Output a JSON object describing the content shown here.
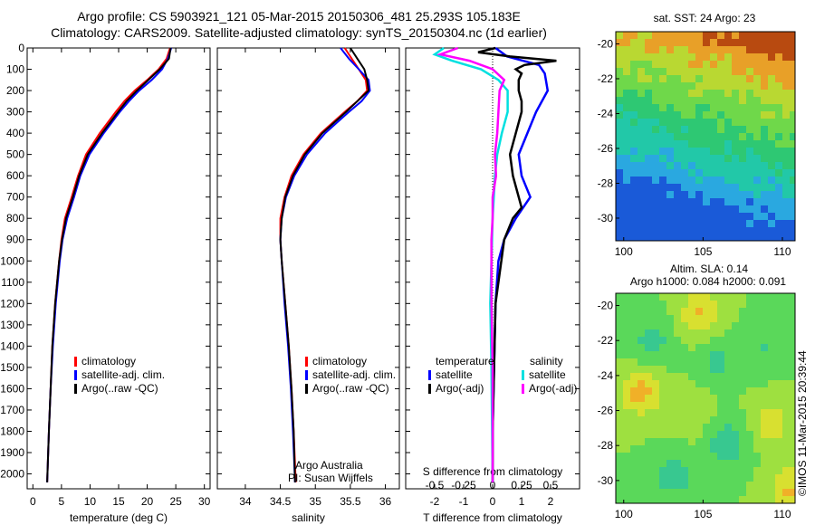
{
  "header": {
    "title_line1": "Argo profile: CS 5903921_121 05-Mar-2015 20150306_481 25.293S 105.183E",
    "title_line2": "Climatology: CARS2009. Satellite-adjusted climatology: synTS_20150304.nc (1d earlier)"
  },
  "footer": {
    "stamp": "©IMOS 11-Mar-2015 20:39:44",
    "argo_australia": "Argo Australia",
    "pi": "PI: Susan Wijffels"
  },
  "colors": {
    "climatology": "#ff0000",
    "satellite": "#0000ff",
    "argo": "#000000",
    "salinity_satellite": "#00e0e0",
    "salinity_argo": "#ff00ff"
  },
  "chart_data": [
    {
      "type": "line",
      "panel": "temperature",
      "xlabel": "temperature (deg C)",
      "xlim": [
        -1,
        31
      ],
      "xticks": [
        0,
        5,
        10,
        15,
        20,
        25,
        30
      ],
      "ylim": [
        2070,
        0
      ],
      "yticks": [
        0,
        100,
        200,
        300,
        400,
        500,
        600,
        700,
        800,
        900,
        1000,
        1100,
        1200,
        1300,
        1400,
        1500,
        1600,
        1700,
        1800,
        1900,
        2000
      ],
      "legend": [
        "climatology",
        "satellite-adj. clim.",
        "Argo(..raw -QC)"
      ],
      "series": [
        {
          "name": "climatology",
          "depth": [
            0,
            50,
            100,
            150,
            200,
            250,
            300,
            400,
            500,
            600,
            700,
            800,
            900,
            1000,
            1200,
            1400,
            1600,
            1800,
            2040
          ],
          "values": [
            24.0,
            23.4,
            22.0,
            20.0,
            17.8,
            16.0,
            14.5,
            11.7,
            9.3,
            7.9,
            6.8,
            5.6,
            5.0,
            4.6,
            3.9,
            3.4,
            3.1,
            2.8,
            2.5
          ]
        },
        {
          "name": "satellite-adj. clim.",
          "depth": [
            0,
            50,
            100,
            150,
            200,
            250,
            300,
            400,
            500,
            600,
            700,
            800,
            900,
            1000,
            1200,
            1400,
            1600,
            1800,
            2040
          ],
          "values": [
            24.2,
            23.6,
            22.6,
            20.8,
            18.6,
            16.8,
            15.2,
            12.4,
            9.9,
            8.3,
            7.2,
            6.0,
            5.2,
            4.7,
            4.0,
            3.5,
            3.1,
            2.8,
            2.5
          ]
        },
        {
          "name": "Argo(..raw -QC)",
          "depth": [
            0,
            50,
            100,
            150,
            200,
            250,
            300,
            400,
            500,
            600,
            700,
            800,
            900,
            1000,
            1200,
            1400,
            1600,
            1800,
            2040
          ],
          "values": [
            24.1,
            23.8,
            22.2,
            20.2,
            18.2,
            16.4,
            14.9,
            12.1,
            9.6,
            8.1,
            7.0,
            5.8,
            5.1,
            4.6,
            3.9,
            3.4,
            3.1,
            2.8,
            2.5
          ]
        }
      ]
    },
    {
      "type": "line",
      "panel": "salinity",
      "xlabel": "salinity",
      "xlim": [
        33.6,
        36.2
      ],
      "xticks": [
        34,
        34.5,
        35,
        35.5,
        36
      ],
      "ylim": [
        2070,
        0
      ],
      "legend": [
        "climatology",
        "satellite-adj. clim.",
        "Argo(..raw -QC)"
      ],
      "series": [
        {
          "name": "climatology",
          "depth": [
            0,
            50,
            100,
            150,
            200,
            250,
            300,
            400,
            500,
            600,
            700,
            800,
            900,
            1000,
            1200,
            1400,
            1600,
            1800,
            2040
          ],
          "values": [
            35.42,
            35.52,
            35.62,
            35.72,
            35.74,
            35.6,
            35.42,
            35.08,
            34.83,
            34.66,
            34.56,
            34.5,
            34.5,
            34.52,
            34.57,
            34.62,
            34.66,
            34.69,
            34.72
          ]
        },
        {
          "name": "satellite-adj. clim.",
          "depth": [
            0,
            50,
            100,
            150,
            200,
            250,
            300,
            400,
            500,
            600,
            700,
            800,
            900,
            1000,
            1200,
            1400,
            1600,
            1800,
            2040
          ],
          "values": [
            35.36,
            35.48,
            35.62,
            35.76,
            35.78,
            35.66,
            35.48,
            35.14,
            34.88,
            34.7,
            34.58,
            34.52,
            34.5,
            34.52,
            34.56,
            34.61,
            34.65,
            34.68,
            34.71
          ]
        },
        {
          "name": "Argo(..raw -QC)",
          "depth": [
            0,
            50,
            100,
            150,
            200,
            250,
            300,
            400,
            500,
            600,
            700,
            800,
            900,
            1000,
            1200,
            1400,
            1600,
            1800,
            2040
          ],
          "values": [
            35.5,
            35.6,
            35.7,
            35.74,
            35.76,
            35.6,
            35.44,
            35.1,
            34.85,
            34.68,
            34.57,
            34.52,
            34.5,
            34.52,
            34.57,
            34.62,
            34.66,
            34.69,
            34.71
          ]
        }
      ]
    },
    {
      "type": "line",
      "panel": "difference",
      "xlabel": "T difference from climatology",
      "xlabel_top": "S difference from climatology",
      "xlim": [
        -3,
        3
      ],
      "xticks": [
        -2,
        -1,
        0,
        1,
        2
      ],
      "xticks_top": [
        -0.5,
        -0.25,
        0,
        0.25,
        0.5
      ],
      "ylim": [
        2070,
        0
      ],
      "legend_temperature_title": "temperature",
      "legend_salinity_title": "salinity",
      "legend_temperature": [
        "satellite",
        "Argo(-adj)"
      ],
      "legend_salinity": [
        "satellite",
        "Argo(-adj)"
      ],
      "series": [
        {
          "name": "temperature satellite",
          "depth": [
            0,
            40,
            80,
            120,
            200,
            300,
            400,
            500,
            600,
            700,
            800,
            900,
            1000,
            1200,
            1500,
            1800,
            2040
          ],
          "values": [
            0.1,
            0.5,
            1.6,
            1.8,
            1.9,
            1.5,
            1.2,
            0.9,
            1.0,
            1.3,
            0.8,
            0.4,
            0.2,
            0.1,
            0.05,
            0.0,
            0.0
          ]
        },
        {
          "name": "temperature Argo(-adj)",
          "depth": [
            0,
            20,
            40,
            60,
            80,
            100,
            120,
            150,
            200,
            250,
            300,
            400,
            500,
            600,
            700,
            750,
            800,
            900,
            1000,
            1100,
            1200,
            1500,
            1800,
            2040
          ],
          "values": [
            0.1,
            -0.5,
            0.6,
            2.2,
            1.1,
            0.8,
            1.0,
            0.9,
            0.9,
            1.0,
            1.0,
            0.8,
            0.6,
            0.7,
            0.9,
            1.0,
            0.7,
            0.4,
            0.3,
            0.2,
            0.1,
            0.05,
            0.0,
            0.0
          ]
        },
        {
          "name": "salinity satellite",
          "depth": [
            0,
            30,
            60,
            100,
            150,
            200,
            300,
            400,
            500,
            600,
            800,
            1000,
            1200,
            1500,
            2040
          ],
          "values": [
            -0.42,
            -0.5,
            -0.35,
            -0.1,
            0.05,
            0.13,
            0.13,
            0.08,
            0.04,
            0.02,
            0.0,
            -0.01,
            -0.02,
            -0.01,
            0.0
          ]
        },
        {
          "name": "salinity Argo(-adj)",
          "depth": [
            0,
            30,
            60,
            100,
            150,
            200,
            300,
            400,
            500,
            600,
            700,
            800,
            900,
            1000,
            1200,
            1500,
            2040
          ],
          "values": [
            -0.3,
            -0.45,
            -0.2,
            0.0,
            0.1,
            0.06,
            0.05,
            0.04,
            0.02,
            0.03,
            0.0,
            0.0,
            -0.01,
            -0.01,
            -0.01,
            0.0,
            0.0
          ]
        }
      ]
    },
    {
      "type": "heatmap",
      "panel": "sst-map",
      "title": "sat. SST: 24  Argo: 23",
      "xticks": [
        100,
        105,
        110
      ],
      "yticks": [
        -20,
        -22,
        -24,
        -26,
        -28,
        -30
      ],
      "xlim": [
        99.5,
        110.8
      ],
      "ylim": [
        -31.3,
        -19.3
      ],
      "colors_by_latitude": [
        "#b84a10",
        "#e8a028",
        "#b9d832",
        "#6fd84a",
        "#2ec873",
        "#22c8a8",
        "#2aa8e0",
        "#1a5ad8"
      ]
    },
    {
      "type": "heatmap",
      "panel": "sla-map",
      "title": "Altim. SLA: 0.14",
      "subtitle": "Argo h1000: 0.084  h2000: 0.091",
      "xticks": [
        100,
        105,
        110
      ],
      "yticks": [
        -20,
        -22,
        -24,
        -26,
        -28,
        -30
      ],
      "xlim": [
        99.5,
        110.8
      ],
      "ylim": [
        -31.3,
        -19.3
      ]
    }
  ]
}
